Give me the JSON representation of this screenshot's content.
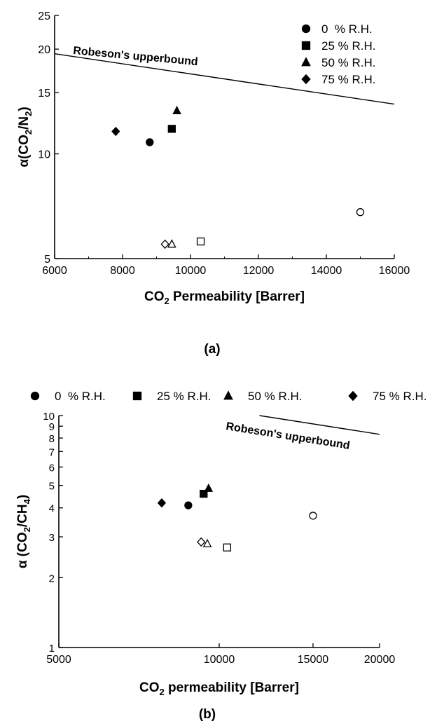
{
  "chart_data": [
    {
      "id": "a",
      "type": "scatter",
      "panel_label": "(a)",
      "xlabel": {
        "pre": "CO",
        "sub": "2",
        "post": " Permeability [Barrer]"
      },
      "ylabel": {
        "pre": "α(CO",
        "sub1": "2",
        "mid": "/N",
        "sub2": "2",
        "post": ")"
      },
      "x_scale": "linear",
      "y_scale": "log",
      "xlim": [
        6000,
        16000
      ],
      "ylim": [
        5,
        25
      ],
      "x_ticks": [
        6000,
        8000,
        10000,
        12000,
        14000,
        16000
      ],
      "x_tick_labels": [
        "6000",
        "8000",
        "10000",
        "12000",
        "14000",
        "16000"
      ],
      "y_ticks": [
        5,
        10,
        15,
        20,
        25
      ],
      "y_tick_labels": [
        "5",
        "10",
        "15",
        "20",
        "25"
      ],
      "legend_position": "top-right",
      "upper_bound": {
        "label": "Robeson's upperbound",
        "points": [
          [
            6000,
            19.4
          ],
          [
            16000,
            13.9
          ]
        ]
      },
      "series": [
        {
          "name": "0  % R.H.",
          "marker": "circle",
          "filled": [
            [
              8800,
              10.8
            ]
          ],
          "open": [
            [
              15000,
              6.8
            ]
          ]
        },
        {
          "name": "25 % R.H.",
          "marker": "square",
          "filled": [
            [
              9450,
              11.8
            ]
          ],
          "open": [
            [
              10300,
              5.6
            ]
          ]
        },
        {
          "name": "50 % R.H.",
          "marker": "triangle",
          "filled": [
            [
              9600,
              13.3
            ]
          ],
          "open": [
            [
              9450,
              5.5
            ]
          ]
        },
        {
          "name": "75 % R.H.",
          "marker": "diamond",
          "filled": [
            [
              7800,
              11.6
            ]
          ],
          "open": [
            [
              9250,
              5.5
            ]
          ]
        }
      ]
    },
    {
      "id": "b",
      "type": "scatter",
      "panel_label": "(b)",
      "xlabel": {
        "pre": "CO",
        "sub": "2",
        "post": " permeability [Barrer]"
      },
      "ylabel": {
        "pre": "α (CO",
        "sub1": "2",
        "mid": "/CH",
        "sub2": "4",
        "post": ")"
      },
      "x_scale": "log",
      "y_scale": "log",
      "xlim": [
        5000,
        20000
      ],
      "ylim": [
        1,
        10
      ],
      "x_ticks": [
        5000,
        10000,
        15000,
        20000
      ],
      "x_tick_labels": [
        "5000",
        "10000",
        "15000",
        "20000"
      ],
      "y_ticks": [
        1,
        2,
        3,
        4,
        5,
        6,
        7,
        8,
        9,
        10
      ],
      "y_tick_labels": [
        "1",
        "2",
        "3",
        "4",
        "5",
        "6",
        "7",
        "8",
        "9",
        "10"
      ],
      "legend_position": "top",
      "upper_bound": {
        "label": "Robeson's upperbound",
        "points": [
          [
            11900,
            10
          ],
          [
            20000,
            8.3
          ]
        ]
      },
      "series": [
        {
          "name": "0  % R.H.",
          "marker": "circle",
          "filled": [
            [
              8750,
              4.1
            ]
          ],
          "open": [
            [
              15000,
              3.7
            ]
          ]
        },
        {
          "name": "25 % R.H.",
          "marker": "square",
          "filled": [
            [
              9350,
              4.6
            ]
          ],
          "open": [
            [
              10350,
              2.7
            ]
          ]
        },
        {
          "name": "50 % R.H.",
          "marker": "triangle",
          "filled": [
            [
              9550,
              4.85
            ]
          ],
          "open": [
            [
              9500,
              2.8
            ]
          ]
        },
        {
          "name": "75 % R.H.",
          "marker": "diamond",
          "filled": [
            [
              7800,
              4.2
            ]
          ],
          "open": [
            [
              9250,
              2.85
            ]
          ]
        }
      ]
    }
  ]
}
